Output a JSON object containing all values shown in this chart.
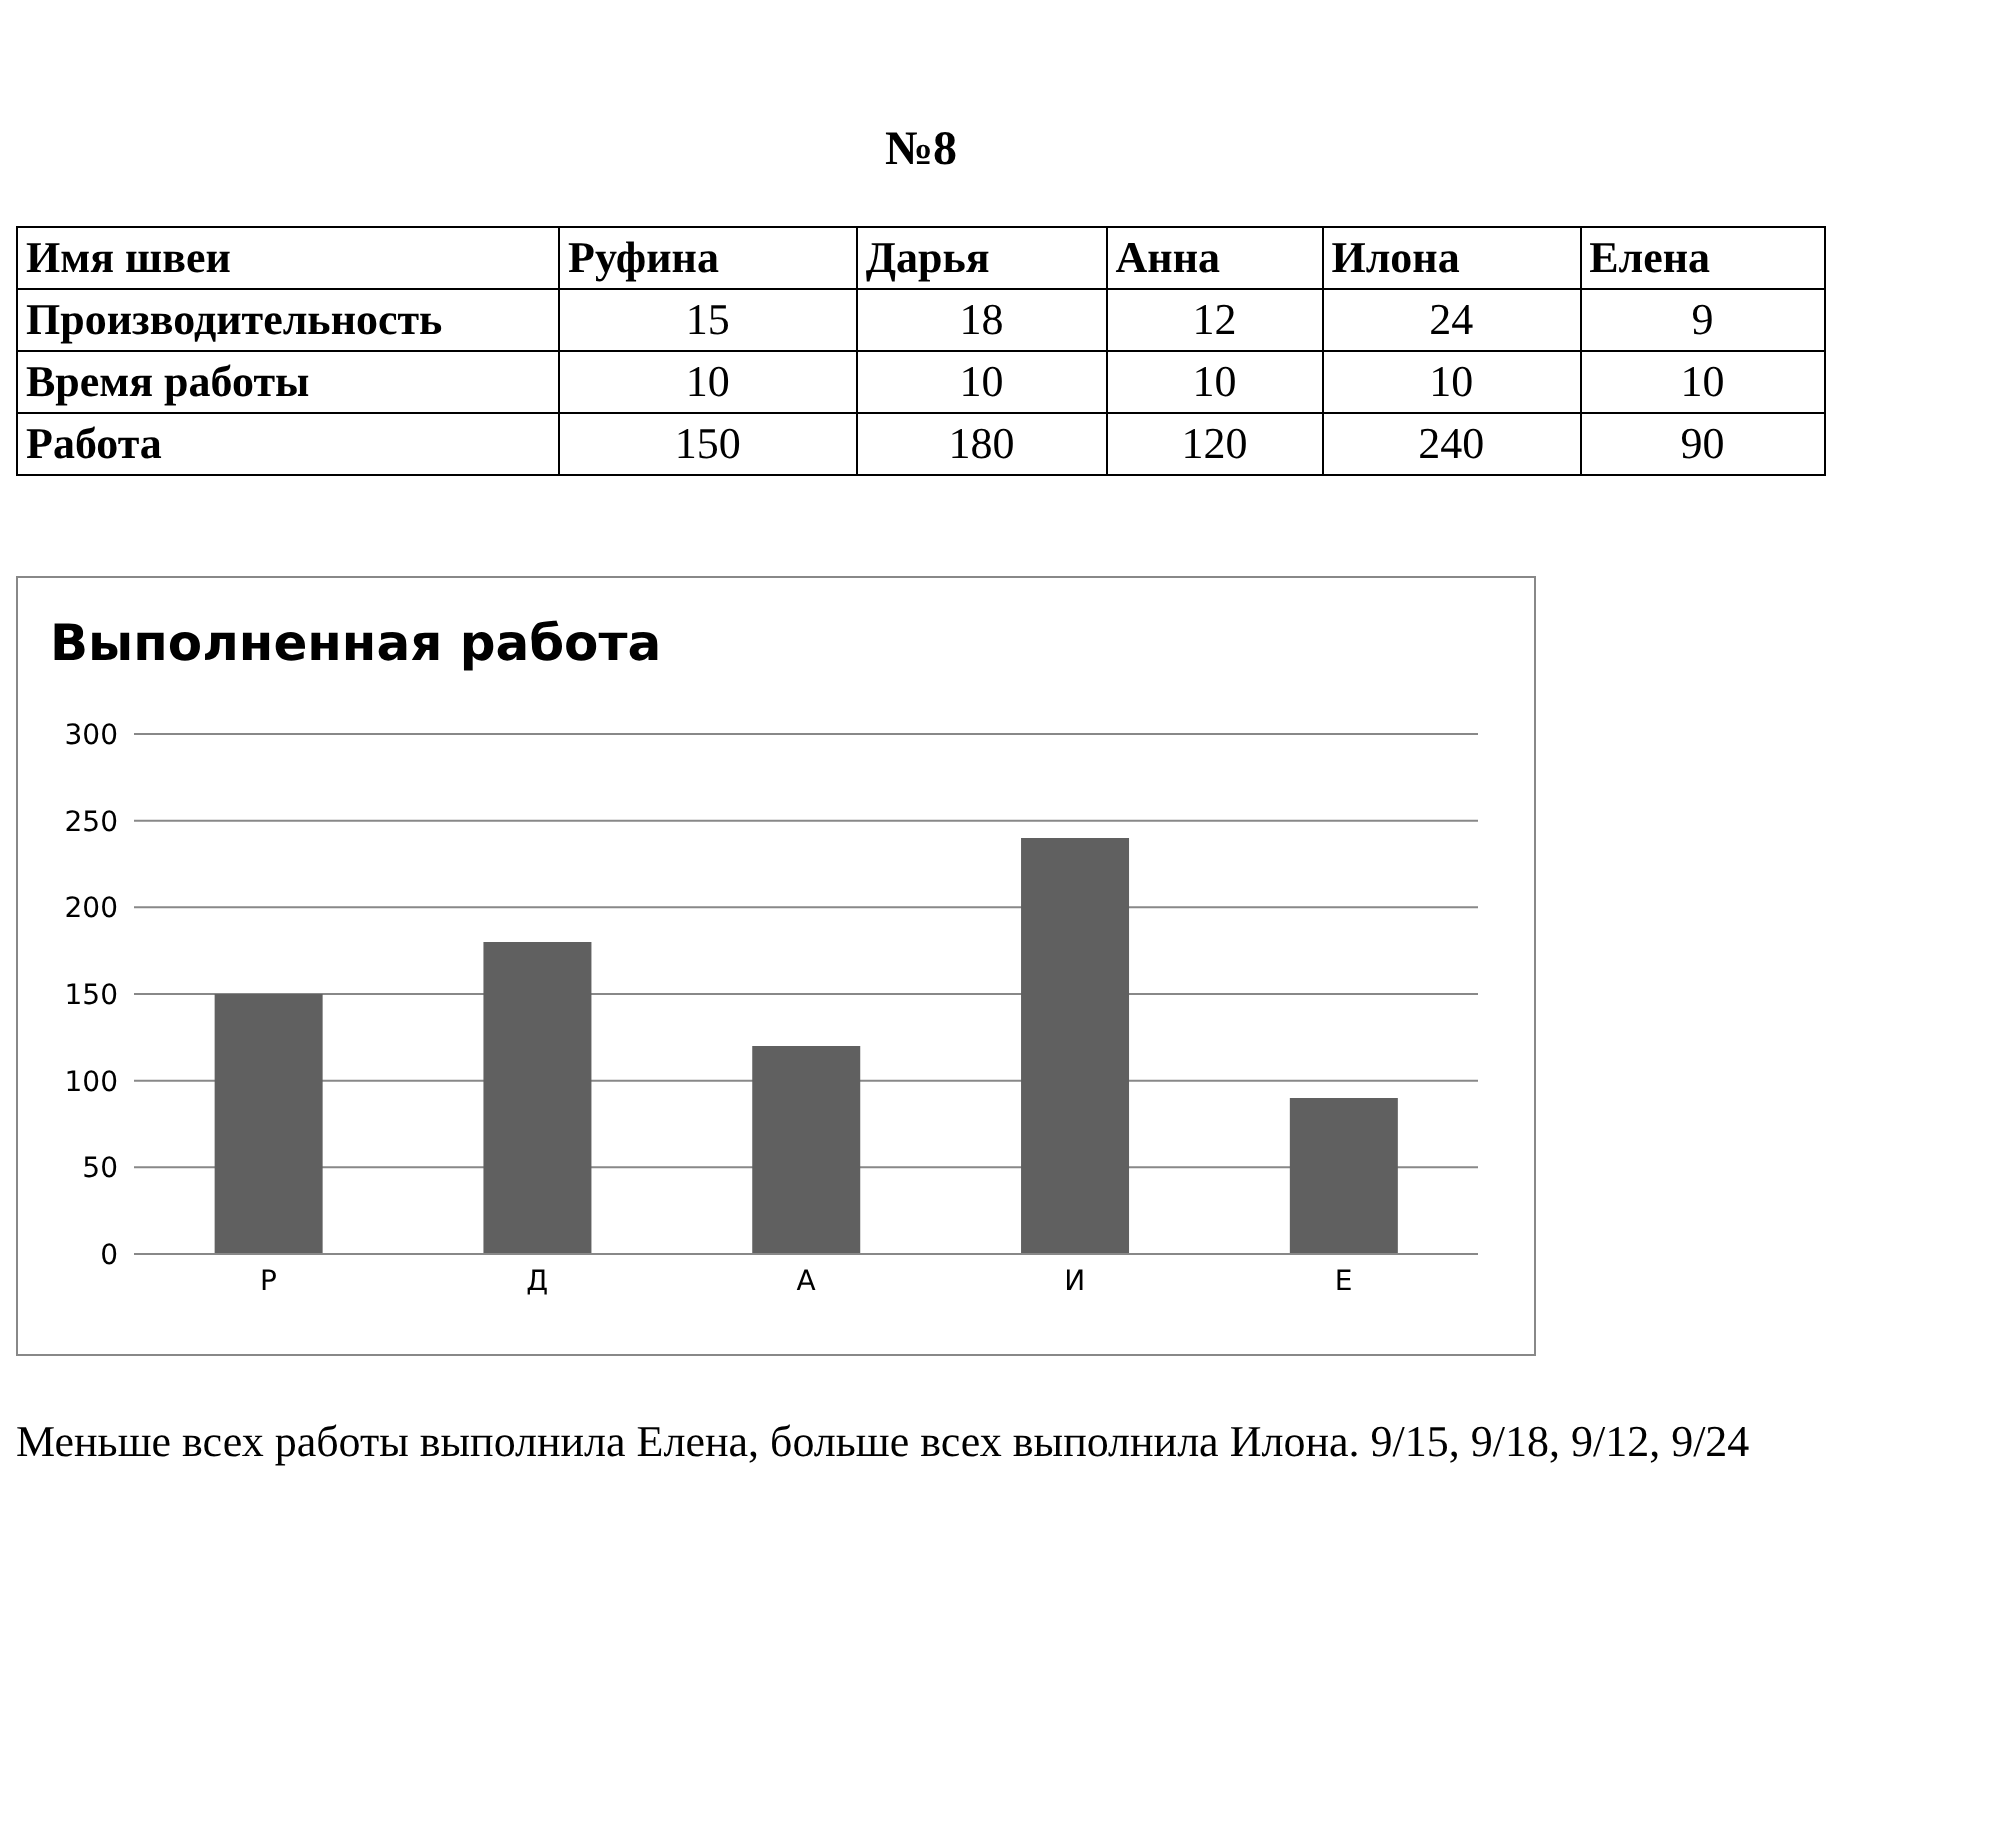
{
  "chart_data": [
    {
      "type": "other",
      "title": "№8",
      "xlabel": "Имя швеи",
      "categories": [
        "Руфина",
        "Дарья",
        "Анна",
        "Илона",
        "Елена"
      ],
      "data_labels": true,
      "series": [
        {
          "name": "Производительность",
          "values": [
            15,
            18,
            12,
            24,
            9
          ]
        },
        {
          "name": "Время работы",
          "values": [
            10,
            10,
            10,
            10,
            10
          ]
        },
        {
          "name": "Работа",
          "values": [
            150,
            180,
            120,
            240,
            90
          ]
        }
      ]
    },
    {
      "type": "bar",
      "title": "Выполненная работа",
      "categories": [
        "Р",
        "Д",
        "А",
        "И",
        "Е"
      ],
      "values": [
        150,
        180,
        120,
        240,
        90
      ],
      "color": "#606060",
      "ylim": [
        0,
        300
      ],
      "yticks": [
        0,
        50,
        100,
        150,
        200,
        250,
        300
      ],
      "grid": "y"
    },
    {
      "type": "other",
      "annotations": [
        "Меньше всех работы выполнила Елена, больше всех выполнила Илона. 9/15, 9/18, 9/12, 9/24"
      ]
    }
  ]
}
